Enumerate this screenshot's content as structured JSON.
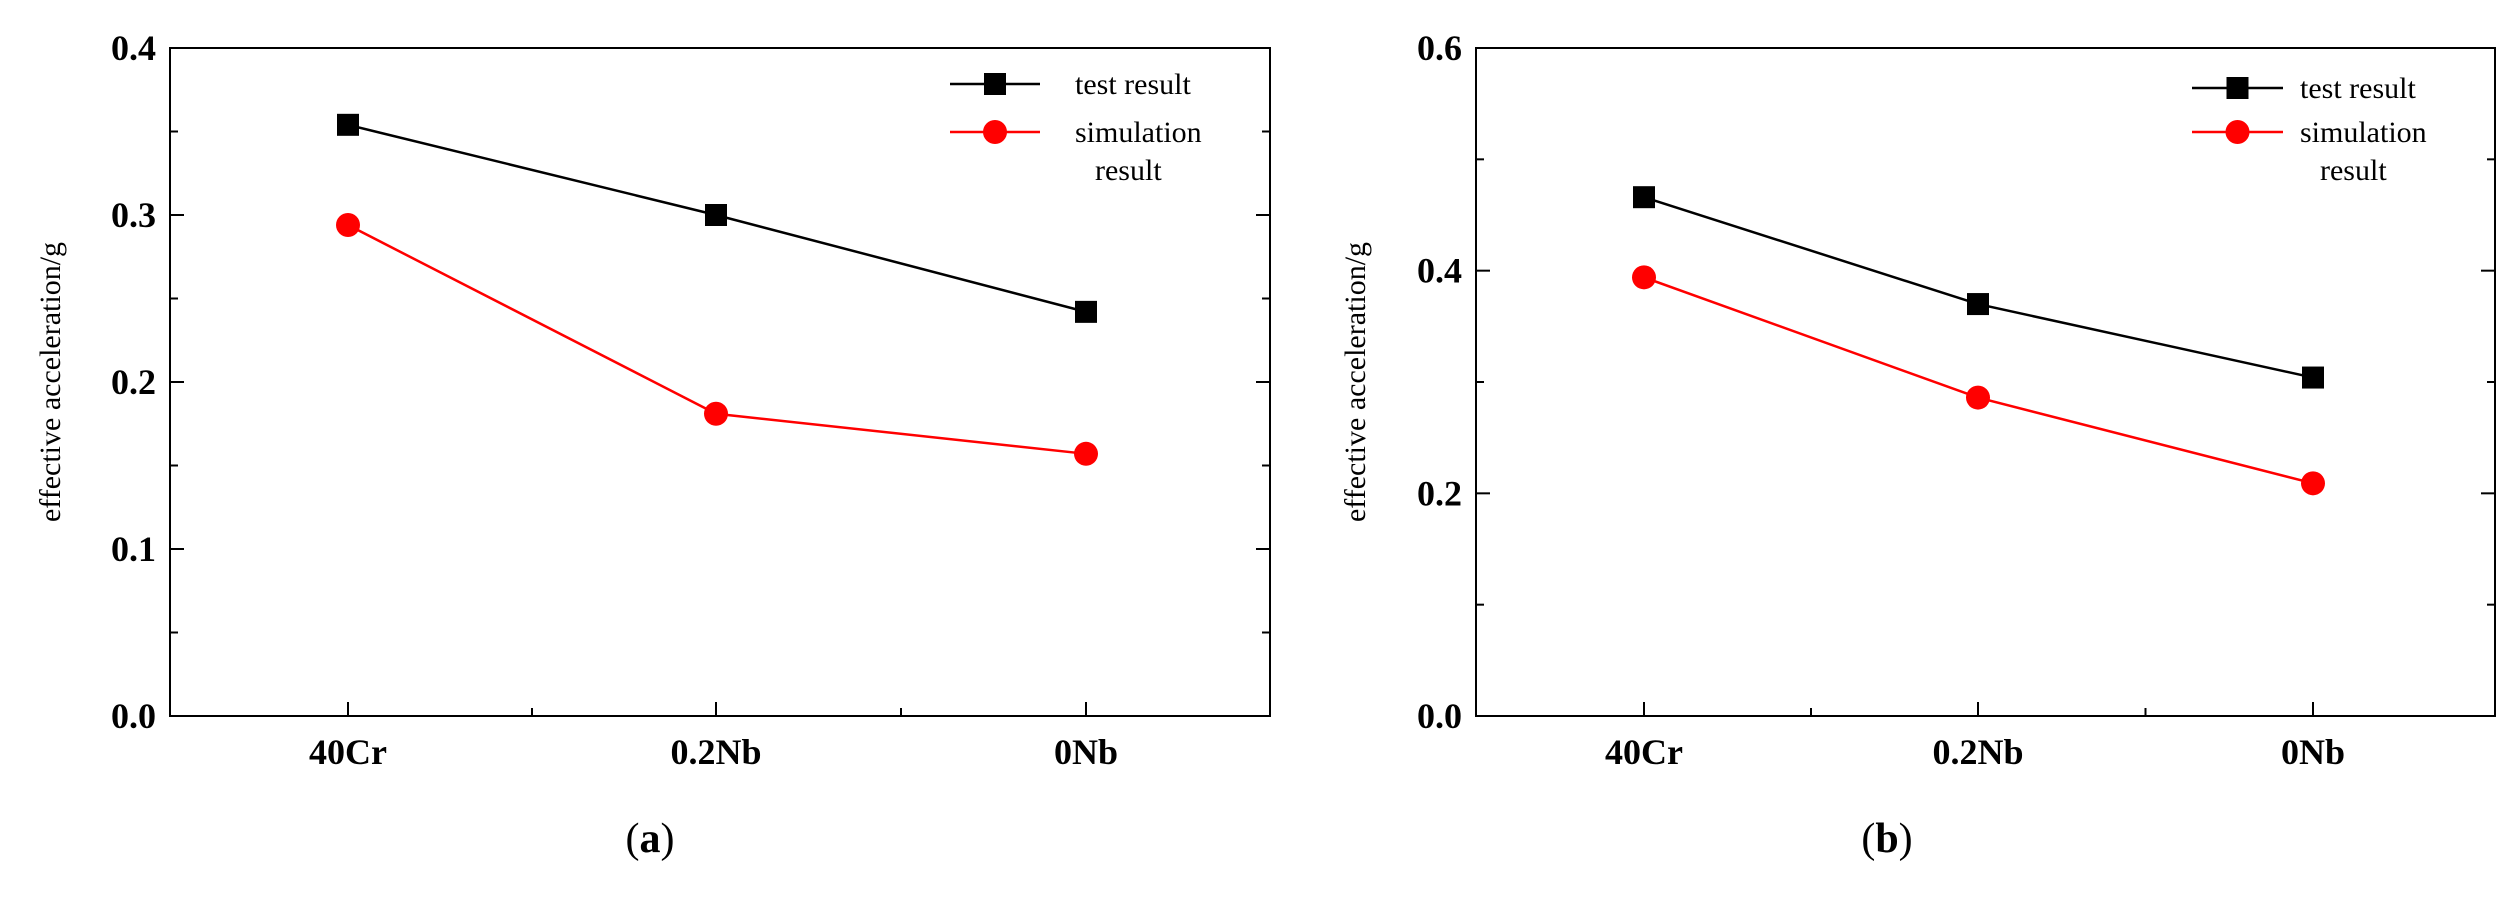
{
  "chart_data": [
    {
      "type": "line",
      "panel_label": "a",
      "categories": [
        "40Cr",
        "0.2Nb",
        "0Nb"
      ],
      "series": [
        {
          "name": "test result",
          "values": [
            0.354,
            0.3,
            0.242
          ],
          "color": "#000000",
          "marker": "square"
        },
        {
          "name": "simulation result",
          "legend_lines": [
            "simulation",
            "result"
          ],
          "values": [
            0.294,
            0.181,
            0.157
          ],
          "color": "#ff0000",
          "marker": "circle"
        }
      ],
      "xlabel": "",
      "ylabel": "effective acceleration/g",
      "ylim": [
        0.0,
        0.4
      ],
      "yticks": [
        "0.0",
        "0.1",
        "0.2",
        "0.3",
        "0.4"
      ],
      "legend": "top-right",
      "grid": false
    },
    {
      "type": "line",
      "panel_label": "b",
      "categories": [
        "40Cr",
        "0.2Nb",
        "0Nb"
      ],
      "series": [
        {
          "name": "test result",
          "values": [
            0.466,
            0.37,
            0.304
          ],
          "color": "#000000",
          "marker": "square"
        },
        {
          "name": "simulation result",
          "legend_lines": [
            "simulation",
            "result"
          ],
          "values": [
            0.394,
            0.286,
            0.209
          ],
          "color": "#ff0000",
          "marker": "circle"
        }
      ],
      "xlabel": "",
      "ylabel": "effective acceleration/g",
      "ylim": [
        0.0,
        0.6
      ],
      "yticks": [
        "0.0",
        "0.2",
        "0.4",
        "0.6"
      ],
      "legend": "top-right",
      "grid": false
    }
  ]
}
